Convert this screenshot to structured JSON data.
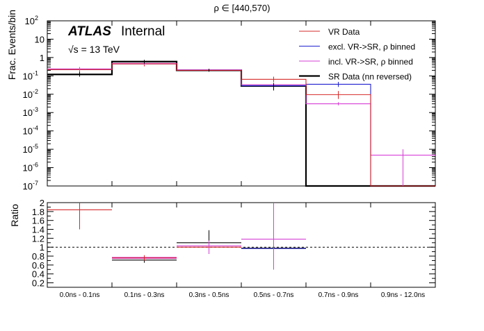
{
  "page": {
    "title": "ρ ∈ [440,570)"
  },
  "labels": {
    "atlas": "ATLAS",
    "internal": "Internal",
    "energy": "√s = 13 TeV",
    "top_ylabel": "Frac. Events/bin",
    "bottom_ylabel": "Ratio"
  },
  "colors": {
    "vr": "#d62728",
    "excl": "#1f1fcf",
    "incl": "#d63fd6",
    "sr": "#000000",
    "frame": "#000000"
  },
  "legend": [
    {
      "label": "VR Data",
      "key": "vr"
    },
    {
      "label": "excl. VR->SR, ρ binned",
      "key": "excl"
    },
    {
      "label": "incl. VR->SR, ρ binned",
      "key": "incl"
    },
    {
      "label": "SR Data (nn reversed)",
      "key": "sr"
    }
  ],
  "chart_data": [
    {
      "type": "line",
      "subtype": "step-histogram",
      "title": "ρ ∈ [440,570)",
      "ylabel": "Frac. Events/bin",
      "yscale": "log",
      "ylim": [
        1e-07,
        100
      ],
      "y_ticks": [
        {
          "v": 1e-07,
          "label": "10",
          "exp": "-7"
        },
        {
          "v": 1e-06,
          "label": "10",
          "exp": "-6"
        },
        {
          "v": 1e-05,
          "label": "10",
          "exp": "-5"
        },
        {
          "v": 0.0001,
          "label": "10",
          "exp": "-4"
        },
        {
          "v": 0.001,
          "label": "10",
          "exp": "-3"
        },
        {
          "v": 0.01,
          "label": "10",
          "exp": "-2"
        },
        {
          "v": 0.1,
          "label": "10",
          "exp": "-1"
        },
        {
          "v": 1,
          "label": "1",
          "exp": ""
        },
        {
          "v": 10,
          "label": "10",
          "exp": ""
        },
        {
          "v": 100,
          "label": "10",
          "exp": "2"
        }
      ],
      "categories": [
        "0.0ns - 0.1ns",
        "0.1ns - 0.3ns",
        "0.3ns - 0.5ns",
        "0.5ns - 0.7ns",
        "0.7ns - 0.9ns",
        "0.9ns - 12.0ns"
      ],
      "series": [
        {
          "name": "VR Data",
          "key": "vr",
          "values": [
            0.22,
            0.45,
            0.2,
            0.065,
            0.0095,
            null
          ],
          "err_lo": [
            0.15,
            0.33,
            0.17,
            0.045,
            0.0055,
            null
          ],
          "err_hi": [
            0.3,
            0.58,
            0.24,
            0.09,
            0.015,
            null
          ]
        },
        {
          "name": "excl. VR->SR, ρ binned",
          "key": "excl",
          "values": [
            0.22,
            0.45,
            0.21,
            0.029,
            0.035,
            null
          ],
          "err_lo": [
            null,
            null,
            null,
            0.02,
            0.025,
            null
          ],
          "err_hi": [
            null,
            null,
            null,
            0.04,
            0.047,
            null
          ]
        },
        {
          "name": "incl. VR->SR, ρ binned",
          "key": "incl",
          "values": [
            0.24,
            0.48,
            0.21,
            0.033,
            0.003,
            4.8e-06
          ],
          "err_lo": [
            0.19,
            0.4,
            0.18,
            0.025,
            0.0025,
            1e-07
          ],
          "err_hi": [
            0.3,
            0.56,
            0.24,
            0.042,
            0.0037,
            1e-05
          ]
        },
        {
          "name": "SR Data (nn reversed)",
          "key": "sr",
          "values": [
            0.12,
            0.6,
            0.2,
            0.028,
            null,
            null
          ],
          "err_lo": [
            0.09,
            0.46,
            0.17,
            0.016,
            null,
            null
          ],
          "err_hi": [
            0.16,
            0.75,
            0.24,
            0.04,
            null,
            null
          ]
        }
      ]
    },
    {
      "type": "line",
      "subtype": "ratio",
      "ylabel": "Ratio",
      "ylim": [
        0.1,
        2.0
      ],
      "y_ticks": [
        0.2,
        0.4,
        0.6,
        0.8,
        1,
        1.2,
        1.4,
        1.6,
        1.8,
        2
      ],
      "reference_line": 1.0,
      "categories": [
        "0.0ns - 0.1ns",
        "0.1ns - 0.3ns",
        "0.3ns - 0.5ns",
        "0.5ns - 0.7ns",
        "0.7ns - 0.9ns",
        "0.9ns - 12.0ns"
      ],
      "series": [
        {
          "name": "VR Data",
          "key": "vr",
          "values": [
            1.84,
            0.76,
            1.0,
            null,
            null,
            null
          ],
          "err_lo": [
            1.4,
            0.7,
            null,
            null,
            null,
            null
          ],
          "err_hi": [
            2.0,
            0.82,
            null,
            null,
            null,
            null
          ]
        },
        {
          "name": "incl. VR->SR, ρ binned",
          "key": "incl",
          "values": [
            null,
            0.76,
            1.03,
            1.18,
            null,
            null
          ],
          "err_lo": [
            null,
            null,
            0.85,
            0.5,
            null,
            null
          ],
          "err_hi": [
            null,
            null,
            1.15,
            2.0,
            null,
            null
          ]
        },
        {
          "name": "SR Data (nn reversed)",
          "key": "sr",
          "values": [
            null,
            0.71,
            1.1,
            0.98,
            null,
            null
          ],
          "err_lo": [
            null,
            0.65,
            0.85,
            0.5,
            null,
            null
          ],
          "err_hi": [
            null,
            0.8,
            1.38,
            1.45,
            null,
            null
          ]
        },
        {
          "name": "excl. VR->SR, ρ binned",
          "key": "excl",
          "values": [
            null,
            null,
            null,
            0.97,
            null,
            null
          ],
          "err_lo": [
            null,
            null,
            null,
            0.5,
            null,
            null
          ],
          "err_hi": [
            null,
            null,
            null,
            1.45,
            null,
            null
          ]
        }
      ]
    }
  ]
}
